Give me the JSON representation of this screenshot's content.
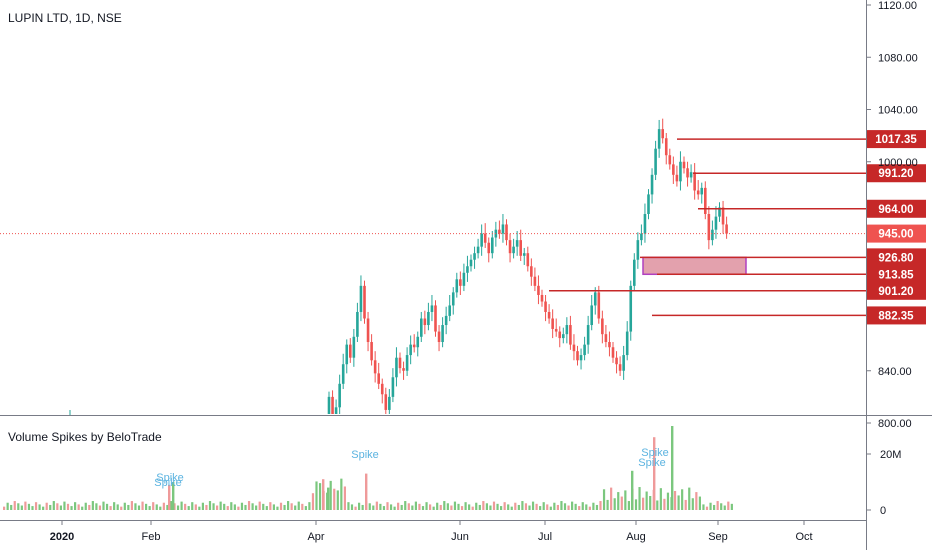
{
  "header": {
    "symbol_title": "LUPIN LTD, 1D, NSE",
    "indicator_title": "Volume Spikes by BeloTrade"
  },
  "colors": {
    "up": "#26a69a",
    "down": "#ef5350",
    "level_line": "#c62828",
    "last_price": "#ef5350",
    "zone_fill": "#e3a1ad",
    "zone_border": "#b040c0",
    "vol_up": "#7bc77e",
    "vol_down": "#ef9a9a",
    "spike_text": "#5bb3e0"
  },
  "chart_data": [
    {
      "type": "candlestick",
      "title": "LUPIN LTD, 1D, NSE",
      "price_axis_ticks": [
        "1120.00",
        "1080.00",
        "1040.00",
        "1000.00",
        "840.00",
        "800.00"
      ],
      "time_axis_labels": [
        "2020",
        "Feb",
        "Apr",
        "Jun",
        "Jul",
        "Aug",
        "Sep",
        "Oct"
      ],
      "last_price": 945.0,
      "horizontal_levels": [
        1017.35,
        991.2,
        964.0,
        926.8,
        913.85,
        901.2,
        882.35
      ],
      "level_labels": [
        "1017.35",
        "991.20",
        "964.00",
        "945.00",
        "926.80",
        "913.85",
        "901.20",
        "882.35"
      ],
      "demand_zone": [
        913.85,
        926.8
      ],
      "ohlc_path_close": [
        820,
        805,
        812,
        830,
        845,
        860,
        850,
        866,
        885,
        905,
        880,
        862,
        848,
        838,
        830,
        822,
        810,
        820,
        835,
        850,
        842,
        840,
        852,
        860,
        858,
        866,
        880,
        875,
        885,
        890,
        870,
        862,
        875,
        882,
        890,
        900,
        910,
        905,
        915,
        920,
        925,
        930,
        935,
        945,
        938,
        930,
        942,
        948,
        945,
        952,
        940,
        930,
        935,
        940,
        928,
        930,
        920,
        912,
        905,
        898,
        893,
        885,
        880,
        872,
        870,
        865,
        868,
        875,
        860,
        855,
        848,
        852,
        860,
        875,
        890,
        900,
        880,
        868,
        862,
        858,
        850,
        845,
        840,
        852,
        870,
        905,
        925,
        940,
        945,
        960,
        975,
        990,
        1010,
        1025,
        1018,
        1005,
        998,
        990,
        985,
        1000,
        995,
        988,
        992,
        978,
        975,
        980,
        960,
        940,
        948,
        958,
        965,
        952,
        945
      ],
      "volume_axis_ticks": [
        "20M",
        "0"
      ],
      "volume_spikes_M": [
        9,
        10,
        11,
        8,
        13,
        14,
        26,
        30
      ],
      "spike_labels": [
        "Spike",
        "Spike",
        "Spike",
        "Spike",
        "Spike"
      ]
    }
  ]
}
